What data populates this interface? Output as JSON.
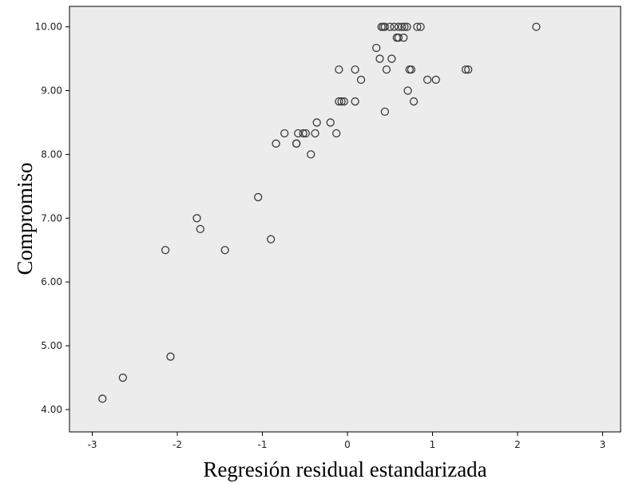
{
  "chart_data": {
    "type": "scatter",
    "title": "",
    "xlabel": "Regresión residual estandarizada",
    "ylabel": "Compromiso",
    "xlim": [
      -3.2,
      3.2
    ],
    "ylim": [
      3.8,
      10.3
    ],
    "x_ticks": [
      -3,
      -2,
      -1,
      0,
      1,
      2,
      3
    ],
    "x_tick_labels": [
      "-3",
      "-2",
      "-1",
      "0",
      "1",
      "2",
      "3"
    ],
    "y_ticks": [
      4,
      5,
      6,
      7,
      8,
      9,
      10
    ],
    "y_tick_labels": [
      "4.00",
      "5.00",
      "6.00",
      "7.00",
      "8.00",
      "9.00",
      "10.00"
    ],
    "grid": false,
    "colors": {
      "plot_background": "#ececec",
      "marker_edge": "#3a3a3a",
      "frame": "#000000"
    },
    "points": [
      {
        "x": -2.88,
        "y": 4.17
      },
      {
        "x": -2.64,
        "y": 4.5
      },
      {
        "x": -2.08,
        "y": 4.83
      },
      {
        "x": -2.14,
        "y": 6.5
      },
      {
        "x": -1.77,
        "y": 7.0
      },
      {
        "x": -1.73,
        "y": 6.83
      },
      {
        "x": -1.44,
        "y": 6.5
      },
      {
        "x": -0.9,
        "y": 6.67
      },
      {
        "x": -1.05,
        "y": 7.33
      },
      {
        "x": -0.84,
        "y": 8.17
      },
      {
        "x": -0.74,
        "y": 8.33
      },
      {
        "x": -0.6,
        "y": 8.17
      },
      {
        "x": -0.6,
        "y": 8.17
      },
      {
        "x": -0.58,
        "y": 8.33
      },
      {
        "x": -0.52,
        "y": 8.33
      },
      {
        "x": -0.49,
        "y": 8.33
      },
      {
        "x": -0.43,
        "y": 8.0
      },
      {
        "x": -0.38,
        "y": 8.33
      },
      {
        "x": -0.36,
        "y": 8.5
      },
      {
        "x": -0.2,
        "y": 8.5
      },
      {
        "x": -0.13,
        "y": 8.33
      },
      {
        "x": -0.1,
        "y": 8.83
      },
      {
        "x": -0.07,
        "y": 8.83
      },
      {
        "x": -0.04,
        "y": 8.83
      },
      {
        "x": -0.1,
        "y": 9.33
      },
      {
        "x": 0.09,
        "y": 8.83
      },
      {
        "x": 0.09,
        "y": 9.33
      },
      {
        "x": 0.16,
        "y": 9.17
      },
      {
        "x": 0.34,
        "y": 9.67
      },
      {
        "x": 0.38,
        "y": 9.5
      },
      {
        "x": 0.44,
        "y": 8.67
      },
      {
        "x": 0.46,
        "y": 9.33
      },
      {
        "x": 0.52,
        "y": 9.5
      },
      {
        "x": 0.4,
        "y": 10.0
      },
      {
        "x": 0.42,
        "y": 10.0
      },
      {
        "x": 0.44,
        "y": 10.0
      },
      {
        "x": 0.5,
        "y": 10.0
      },
      {
        "x": 0.55,
        "y": 10.0
      },
      {
        "x": 0.58,
        "y": 9.83
      },
      {
        "x": 0.6,
        "y": 9.83
      },
      {
        "x": 0.6,
        "y": 10.0
      },
      {
        "x": 0.64,
        "y": 10.0
      },
      {
        "x": 0.66,
        "y": 9.83
      },
      {
        "x": 0.67,
        "y": 10.0
      },
      {
        "x": 0.7,
        "y": 10.0
      },
      {
        "x": 0.71,
        "y": 9.0
      },
      {
        "x": 0.73,
        "y": 9.33
      },
      {
        "x": 0.75,
        "y": 9.33
      },
      {
        "x": 0.78,
        "y": 8.83
      },
      {
        "x": 0.82,
        "y": 10.0
      },
      {
        "x": 0.86,
        "y": 10.0
      },
      {
        "x": 0.94,
        "y": 9.17
      },
      {
        "x": 1.04,
        "y": 9.17
      },
      {
        "x": 1.39,
        "y": 9.33
      },
      {
        "x": 1.42,
        "y": 9.33
      },
      {
        "x": 2.22,
        "y": 10.0
      }
    ]
  }
}
